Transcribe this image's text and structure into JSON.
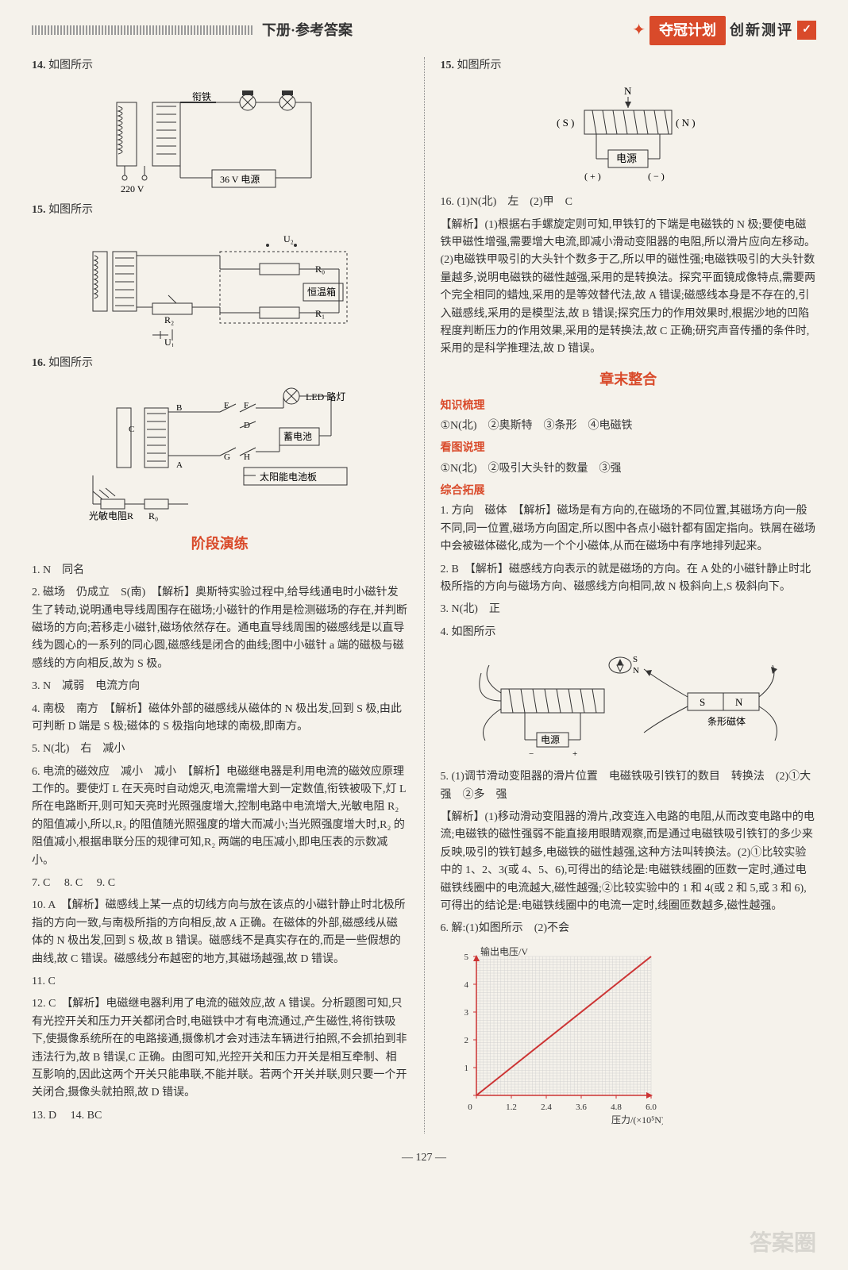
{
  "header": {
    "title": "下册·参考答案",
    "brand_badge": "夺冠计划",
    "brand_text": "创新测评",
    "brand_mark": "✓"
  },
  "left": {
    "q14": {
      "label": "14.",
      "text": "如图所示"
    },
    "fig14": {
      "labels": {
        "iron": "衔铁",
        "v220": "220 V",
        "v36": "36 V 电源"
      }
    },
    "q15": {
      "label": "15.",
      "text": "如图所示"
    },
    "fig15": {
      "labels": {
        "u2": "U₂",
        "r0": "R₀",
        "box": "恒温箱",
        "r2": "R₂",
        "r1": "R₁",
        "u1": "U₁"
      }
    },
    "q16": {
      "label": "16.",
      "text": "如图所示"
    },
    "fig16": {
      "labels": {
        "led": "LED 路灯",
        "battery": "蓄电池",
        "solar": "太阳能电池板",
        "photo": "光敏电阻R",
        "r0": "R₀",
        "b": "B",
        "c": "C",
        "a": "A",
        "e": "E",
        "f": "F",
        "d": "D",
        "g": "G",
        "h": "H"
      }
    },
    "section_stage": "阶段演练",
    "q1": "1. N　同名",
    "q2": "2. 磁场　仍成立　S(南)　【解析】奥斯特实验过程中,给导线通电时小磁针发生了转动,说明通电导线周围存在磁场;小磁针的作用是检测磁场的存在,并判断磁场的方向;若移走小磁针,磁场依然存在。通电直导线周围的磁感线是以直导线为圆心的一系列的同心圆,磁感线是闭合的曲线;图中小磁针 a 端的磁极与磁感线的方向相反,故为 S 极。",
    "q3": "3. N　减弱　电流方向",
    "q4": "4. 南极　南方　【解析】磁体外部的磁感线从磁体的 N 极出发,回到 S 极,由此可判断 D 端是 S 极;磁体的 S 极指向地球的南极,即南方。",
    "q5": "5. N(北)　右　减小",
    "q6": "6. 电流的磁效应　减小　减小　【解析】电磁继电器是利用电流的磁效应原理工作的。要使灯 L 在天亮时自动熄灭,电流需增大到一定数值,衔铁被吸下,灯 L 所在电路断开,则可知天亮时光照强度增大,控制电路中电流增大,光敏电阻 R₂ 的阻值减小,所以,R₂ 的阻值随光照强度的增大而减小;当光照强度增大时,R₂ 的阻值减小,根据串联分压的规律可知,R₂ 两端的电压减小,即电压表的示数减小。",
    "q7": "7. C",
    "q8": "8. C",
    "q9": "9. C",
    "q10": "10. A　【解析】磁感线上某一点的切线方向与放在该点的小磁针静止时北极所指的方向一致,与南极所指的方向相反,故 A 正确。在磁体的外部,磁感线从磁体的 N 极出发,回到 S 极,故 B 错误。磁感线不是真实存在的,而是一些假想的曲线,故 C 错误。磁感线分布越密的地方,其磁场越强,故 D 错误。",
    "q11": "11. C",
    "q12": "12. C　【解析】电磁继电器利用了电流的磁效应,故 A 错误。分析题图可知,只有光控开关和压力开关都闭合时,电磁铁中才有电流通过,产生磁性,将衔铁吸下,使摄像系统所在的电路接通,摄像机才会对违法车辆进行拍照,不会抓拍到非违法行为,故 B 错误,C 正确。由图可知,光控开关和压力开关是相互牵制、相互影响的,因此这两个开关只能串联,不能并联。若两个开关并联,则只要一个开关闭合,摄像头就拍照,故 D 错误。",
    "q13": "13. D",
    "q14b": "14. BC"
  },
  "right": {
    "q15": {
      "label": "15.",
      "text": "如图所示"
    },
    "fig15r": {
      "labels": {
        "N": "N",
        "S": "( S )",
        "Nr": "( N )",
        "src": "电源",
        "plus": "( + )",
        "minus": "( − )"
      }
    },
    "q16": "16. (1)N(北)　左　(2)甲　C",
    "q16_analysis": "【解析】(1)根据右手螺旋定则可知,甲铁钉的下端是电磁铁的 N 极;要使电磁铁甲磁性增强,需要增大电流,即减小滑动变阻器的电阻,所以滑片应向左移动。(2)电磁铁甲吸引的大头针个数多于乙,所以甲的磁性强;电磁铁吸引的大头针数量越多,说明电磁铁的磁性越强,采用的是转换法。探究平面镜成像特点,需要两个完全相同的蜡烛,采用的是等效替代法,故 A 错误;磁感线本身是不存在的,引入磁感线,采用的是模型法,故 B 错误;探究压力的作用效果时,根据沙地的凹陷程度判断压力的作用效果,采用的是转换法,故 C 正确;研究声音传播的条件时,采用的是科学推理法,故 D 错误。",
    "section_chapter": "章末整合",
    "sub_knowledge": "知识梳理",
    "k_line1": "①N(北)　②奥斯特　③条形　④电磁铁",
    "sub_picture": "看图说理",
    "p_line1": "①N(北)　②吸引大头针的数量　③强",
    "sub_expand": "综合拓展",
    "e1": "1. 方向　磁体　【解析】磁场是有方向的,在磁场的不同位置,其磁场方向一般不同,同一位置,磁场方向固定,所以图中各点小磁针都有固定指向。铁屑在磁场中会被磁体磁化,成为一个个小磁体,从而在磁场中有序地排列起来。",
    "e2": "2. B　【解析】磁感线方向表示的就是磁场的方向。在 A 处的小磁针静止时北极所指的方向与磁场方向、磁感线方向相同,故 N 极斜向上,S 极斜向下。",
    "e3": "3. N(北)　正",
    "e4": "4. 如图所示",
    "fig_e4": {
      "labels": {
        "S": "S",
        "N": "N",
        "bar": "条形磁体",
        "src": "电源",
        "plus": "+",
        "minus": "−",
        "compass_s": "S",
        "compass_n": "N"
      }
    },
    "e5": "5. (1)调节滑动变阻器的滑片位置　电磁铁吸引铁钉的数目　转换法　(2)①大　强　②多　强",
    "e5_analysis": "【解析】(1)移动滑动变阻器的滑片,改变连入电路的电阻,从而改变电路中的电流;电磁铁的磁性强弱不能直接用眼睛观察,而是通过电磁铁吸引铁钉的多少来反映,吸引的铁钉越多,电磁铁的磁性越强,这种方法叫转换法。(2)①比较实验中的 1、2、3(或 4、5、6),可得出的结论是:电磁铁线圈的匝数一定时,通过电磁铁线圈中的电流越大,磁性越强;②比较实验中的 1 和 4(或 2 和 5,或 3 和 6),可得出的结论是:电磁铁线圈中的电流一定时,线圈匝数越多,磁性越强。",
    "e6": "6. 解:(1)如图所示　(2)不会",
    "chart": {
      "type": "line",
      "x_label": "压力/(×10⁵N)",
      "y_label": "输出电压/V",
      "x_ticks": [
        0,
        1.2,
        2.4,
        3.6,
        4.8,
        6.0
      ],
      "y_ticks": [
        0,
        1,
        2,
        3,
        4,
        5
      ],
      "xlim": [
        0,
        6.0
      ],
      "ylim": [
        0,
        5
      ],
      "line_color": "#cc3333",
      "points": [
        [
          0,
          0
        ],
        [
          6.0,
          5
        ]
      ],
      "grid_color": "#cccccc",
      "axis_color": "#cc3333",
      "background": "#f5f2eb"
    }
  },
  "page_number": "127",
  "watermark": "答案圈"
}
